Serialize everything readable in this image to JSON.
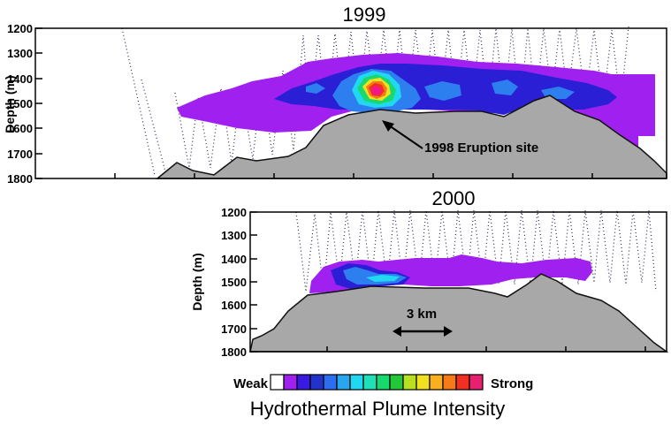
{
  "panels": [
    {
      "title": "1999",
      "ylabel": "Depth (m)",
      "ticks": [
        "1200",
        "1300",
        "1400",
        "1500",
        "1600",
        "1700",
        "1800"
      ],
      "annotation": "1998 Eruption site"
    },
    {
      "title": "2000",
      "ylabel": "Depth (m)",
      "ticks": [
        "1200",
        "1300",
        "1400",
        "1500",
        "1600",
        "1700",
        "1800"
      ],
      "scalebar": "3 km"
    }
  ],
  "legend": {
    "weak": "Weak",
    "strong": "Strong",
    "caption": "Hydrothermal Plume Intensity",
    "colors": [
      "#ffffff",
      "#a020f0",
      "#3a1ae0",
      "#2233cc",
      "#2d6df0",
      "#2aa6ee",
      "#22d8f0",
      "#20e0b8",
      "#18d870",
      "#22c83a",
      "#b8e020",
      "#f0e020",
      "#f8b020",
      "#f57a18",
      "#f03020",
      "#e82070"
    ]
  },
  "colors": {
    "terrain": "#a8a8a8",
    "plume_weak": "#a020f0",
    "plume_mid": "#2b1fd6",
    "plume_core": "#f0188a"
  }
}
